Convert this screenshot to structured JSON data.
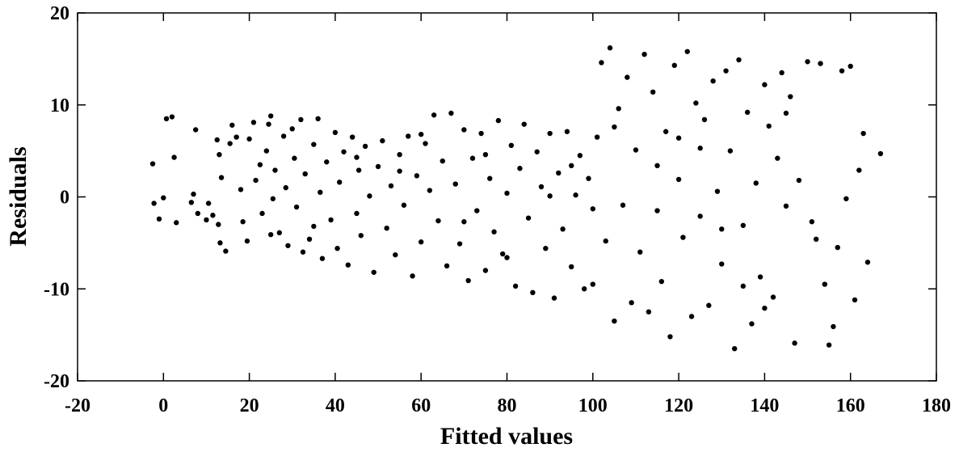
{
  "chart_data": {
    "type": "scatter",
    "title": "",
    "xlabel": "Fitted values",
    "ylabel": "Residuals",
    "xlim": [
      -20,
      180
    ],
    "ylim": [
      -20,
      20
    ],
    "xticks": [
      -20,
      0,
      20,
      40,
      60,
      80,
      100,
      120,
      140,
      160,
      180
    ],
    "yticks": [
      -20,
      -10,
      0,
      10,
      20
    ],
    "xtick_labels": [
      "-20",
      "0",
      "20",
      "40",
      "60",
      "80",
      "100",
      "120",
      "140",
      "160",
      "180"
    ],
    "ytick_labels": [
      "-20",
      "-10",
      "0",
      "10",
      "20"
    ],
    "grid": false,
    "legend": "none",
    "marker_color": "#000000",
    "points": [
      [
        -2.5,
        3.6
      ],
      [
        -2.2,
        -0.7
      ],
      [
        -1.0,
        -2.4
      ],
      [
        0.0,
        -0.1
      ],
      [
        0.7,
        8.5
      ],
      [
        2.0,
        8.7
      ],
      [
        2.5,
        4.3
      ],
      [
        3.0,
        -2.8
      ],
      [
        6.5,
        -0.6
      ],
      [
        7.0,
        0.3
      ],
      [
        7.5,
        7.3
      ],
      [
        8.0,
        -1.8
      ],
      [
        10.0,
        -2.5
      ],
      [
        10.5,
        -0.7
      ],
      [
        11.5,
        -2.0
      ],
      [
        12.5,
        6.2
      ],
      [
        13.0,
        4.6
      ],
      [
        13.5,
        2.1
      ],
      [
        12.8,
        -3.0
      ],
      [
        13.2,
        -5.0
      ],
      [
        14.5,
        -5.9
      ],
      [
        15.5,
        5.8
      ],
      [
        16.0,
        7.8
      ],
      [
        17.0,
        6.5
      ],
      [
        18.0,
        0.8
      ],
      [
        18.5,
        -2.7
      ],
      [
        19.5,
        -4.8
      ],
      [
        20.0,
        6.3
      ],
      [
        21.0,
        8.1
      ],
      [
        21.5,
        1.8
      ],
      [
        22.5,
        3.5
      ],
      [
        23.0,
        -1.8
      ],
      [
        24.0,
        5.0
      ],
      [
        24.5,
        7.9
      ],
      [
        25.0,
        8.8
      ],
      [
        25.5,
        -0.2
      ],
      [
        26.0,
        2.9
      ],
      [
        27.0,
        -3.9
      ],
      [
        28.0,
        6.6
      ],
      [
        28.5,
        1.0
      ],
      [
        29.0,
        -5.3
      ],
      [
        30.0,
        7.4
      ],
      [
        30.5,
        4.2
      ],
      [
        31.0,
        -1.1
      ],
      [
        32.0,
        8.4
      ],
      [
        32.5,
        -6.0
      ],
      [
        33.0,
        2.5
      ],
      [
        34.0,
        -4.6
      ],
      [
        35.0,
        5.7
      ],
      [
        36.0,
        8.5
      ],
      [
        36.5,
        0.5
      ],
      [
        37.0,
        -6.7
      ],
      [
        38.0,
        3.8
      ],
      [
        39.0,
        -2.5
      ],
      [
        40.0,
        7.0
      ],
      [
        40.5,
        -5.6
      ],
      [
        41.0,
        1.6
      ],
      [
        42.0,
        4.9
      ],
      [
        43.0,
        -7.4
      ],
      [
        44.0,
        6.5
      ],
      [
        45.0,
        -1.8
      ],
      [
        45.5,
        2.9
      ],
      [
        46.0,
        -4.2
      ],
      [
        47.0,
        5.5
      ],
      [
        48.0,
        0.1
      ],
      [
        49.0,
        -8.2
      ],
      [
        50.0,
        3.3
      ],
      [
        51.0,
        6.1
      ],
      [
        52.0,
        -3.4
      ],
      [
        53.0,
        1.2
      ],
      [
        54.0,
        -6.3
      ],
      [
        55.0,
        4.6
      ],
      [
        56.0,
        -0.9
      ],
      [
        57.0,
        6.6
      ],
      [
        58.0,
        -8.6
      ],
      [
        59.0,
        2.3
      ],
      [
        60.0,
        -4.9
      ],
      [
        61.0,
        5.8
      ],
      [
        62.0,
        0.7
      ],
      [
        63.0,
        8.9
      ],
      [
        64.0,
        -2.6
      ],
      [
        65.0,
        3.9
      ],
      [
        66.0,
        -7.5
      ],
      [
        67.0,
        9.1
      ],
      [
        68.0,
        1.4
      ],
      [
        69.0,
        -5.1
      ],
      [
        70.0,
        7.3
      ],
      [
        71.0,
        -9.1
      ],
      [
        72.0,
        4.2
      ],
      [
        73.0,
        -1.5
      ],
      [
        74.0,
        6.9
      ],
      [
        75.0,
        -8.0
      ],
      [
        76.0,
        2.0
      ],
      [
        77.0,
        -3.8
      ],
      [
        78.0,
        8.3
      ],
      [
        79.0,
        -6.2
      ],
      [
        80.0,
        0.4
      ],
      [
        81.0,
        5.6
      ],
      [
        82.0,
        -9.7
      ],
      [
        83.0,
        3.1
      ],
      [
        84.0,
        7.9
      ],
      [
        85.0,
        -2.3
      ],
      [
        86.0,
        -10.4
      ],
      [
        87.0,
        4.9
      ],
      [
        88.0,
        1.1
      ],
      [
        89.0,
        -5.6
      ],
      [
        90.0,
        6.9
      ],
      [
        91.0,
        -11.0
      ],
      [
        92.0,
        2.6
      ],
      [
        93.0,
        -3.5
      ],
      [
        94.0,
        7.1
      ],
      [
        95.0,
        -7.6
      ],
      [
        96.0,
        0.2
      ],
      [
        97.0,
        4.5
      ],
      [
        98.0,
        -10.0
      ],
      [
        99.0,
        2.0
      ],
      [
        100.0,
        -1.3
      ],
      [
        101.0,
        6.5
      ],
      [
        102.0,
        14.6
      ],
      [
        103.0,
        -4.8
      ],
      [
        104.0,
        16.2
      ],
      [
        105.0,
        -13.5
      ],
      [
        106.0,
        9.6
      ],
      [
        107.0,
        -0.9
      ],
      [
        108.0,
        13.0
      ],
      [
        109.0,
        -11.5
      ],
      [
        110.0,
        5.1
      ],
      [
        111.0,
        -6.0
      ],
      [
        112.0,
        15.5
      ],
      [
        113.0,
        -12.5
      ],
      [
        114.0,
        11.4
      ],
      [
        115.0,
        3.4
      ],
      [
        116.0,
        -9.2
      ],
      [
        117.0,
        7.1
      ],
      [
        118.0,
        -15.2
      ],
      [
        119.0,
        14.3
      ],
      [
        120.0,
        1.9
      ],
      [
        121.0,
        -4.4
      ],
      [
        122.0,
        15.8
      ],
      [
        123.0,
        -13.0
      ],
      [
        124.0,
        10.2
      ],
      [
        125.0,
        -2.1
      ],
      [
        126.0,
        8.4
      ],
      [
        127.0,
        -11.8
      ],
      [
        128.0,
        12.6
      ],
      [
        129.0,
        0.6
      ],
      [
        130.0,
        -7.3
      ],
      [
        131.0,
        13.7
      ],
      [
        132.0,
        5.0
      ],
      [
        133.0,
        -16.5
      ],
      [
        134.0,
        14.9
      ],
      [
        135.0,
        -3.1
      ],
      [
        136.0,
        9.2
      ],
      [
        137.0,
        -13.8
      ],
      [
        138.0,
        1.5
      ],
      [
        139.0,
        -8.7
      ],
      [
        140.0,
        12.2
      ],
      [
        141.0,
        7.7
      ],
      [
        142.0,
        -10.9
      ],
      [
        143.0,
        4.2
      ],
      [
        144.0,
        13.5
      ],
      [
        145.0,
        -1.0
      ],
      [
        146.0,
        10.9
      ],
      [
        147.0,
        -15.9
      ],
      [
        148.0,
        1.8
      ],
      [
        150.0,
        14.7
      ],
      [
        151.0,
        -2.7
      ],
      [
        152.0,
        -4.6
      ],
      [
        153.0,
        14.5
      ],
      [
        154.0,
        -9.5
      ],
      [
        155.0,
        -16.1
      ],
      [
        156.0,
        -14.1
      ],
      [
        157.0,
        -5.5
      ],
      [
        158.0,
        13.7
      ],
      [
        159.0,
        -0.2
      ],
      [
        160.0,
        14.2
      ],
      [
        161.0,
        -11.2
      ],
      [
        162.0,
        2.9
      ],
      [
        163.0,
        6.9
      ],
      [
        164.0,
        -7.1
      ],
      [
        167.0,
        4.7
      ],
      [
        35.0,
        -3.2
      ],
      [
        60.0,
        6.8
      ],
      [
        90.0,
        0.1
      ],
      [
        120.0,
        6.4
      ],
      [
        80.0,
        -6.6
      ],
      [
        100.0,
        -9.5
      ],
      [
        130.0,
        -3.5
      ],
      [
        140.0,
        -12.1
      ],
      [
        55.0,
        2.8
      ],
      [
        70.0,
        -2.7
      ],
      [
        95.0,
        3.4
      ],
      [
        115.0,
        -1.5
      ],
      [
        125.0,
        5.3
      ],
      [
        45.0,
        4.3
      ],
      [
        25.0,
        -4.1
      ],
      [
        75.0,
        4.6
      ],
      [
        105.0,
        7.6
      ],
      [
        135.0,
        -9.7
      ],
      [
        145.0,
        9.1
      ]
    ]
  }
}
